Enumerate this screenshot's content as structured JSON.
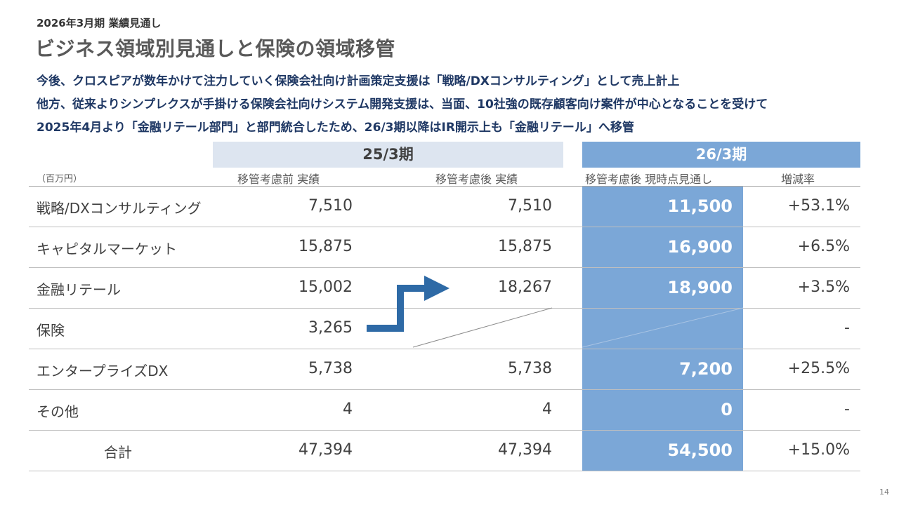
{
  "header": {
    "supertitle": "2026年3月期 業績見通し",
    "title": "ビジネス領域別見通しと保険の領域移管",
    "description": [
      "今後、クロスピアが数年かけて注力していく保険会社向け計画策定支援は「戦略/DXコンサルティング」として売上計上",
      "他方、従来よりシンプレクスが手掛ける保険会社向けシステム開発支援は、当面、10社強の既存顧客向け案件が中心となることを受けて",
      "2025年4月より「金融リテール部門」と部門統合したため、26/3期以降はIR開示上も「金融リテール」へ移管"
    ]
  },
  "table": {
    "unit": "（百万円）",
    "period_left": "25/3期",
    "period_right": "26/3期",
    "columns": [
      "移管考慮前 実績",
      "移管考慮後 実績",
      "移管考慮後 現時点見通し",
      "増減率"
    ],
    "rows": [
      {
        "label": "戦略/DXコンサルティング",
        "before": "7,510",
        "after": "7,510",
        "forecast": "11,500",
        "change": "+53.1%"
      },
      {
        "label": "キャピタルマーケット",
        "before": "15,875",
        "after": "15,875",
        "forecast": "16,900",
        "change": "+6.5%"
      },
      {
        "label": "金融リテール",
        "before": "15,002",
        "after": "18,267",
        "forecast": "18,900",
        "change": "+3.5%"
      },
      {
        "label": "保険",
        "before": "3,265",
        "after": "",
        "forecast": "",
        "change": "-"
      },
      {
        "label": "エンタープライズDX",
        "before": "5,738",
        "after": "5,738",
        "forecast": "7,200",
        "change": "+25.5%"
      },
      {
        "label": "その他",
        "before": "4",
        "after": "4",
        "forecast": "0",
        "change": "-"
      },
      {
        "label": "合計",
        "before": "47,394",
        "after": "47,394",
        "forecast": "54,500",
        "change": "+15.0%"
      }
    ]
  },
  "colors": {
    "accent_blue": "#7ba7d7",
    "light_band": "#dde5f0",
    "arrow": "#2e6aa6",
    "title_navy": "#1f3864"
  },
  "page_number": "14"
}
